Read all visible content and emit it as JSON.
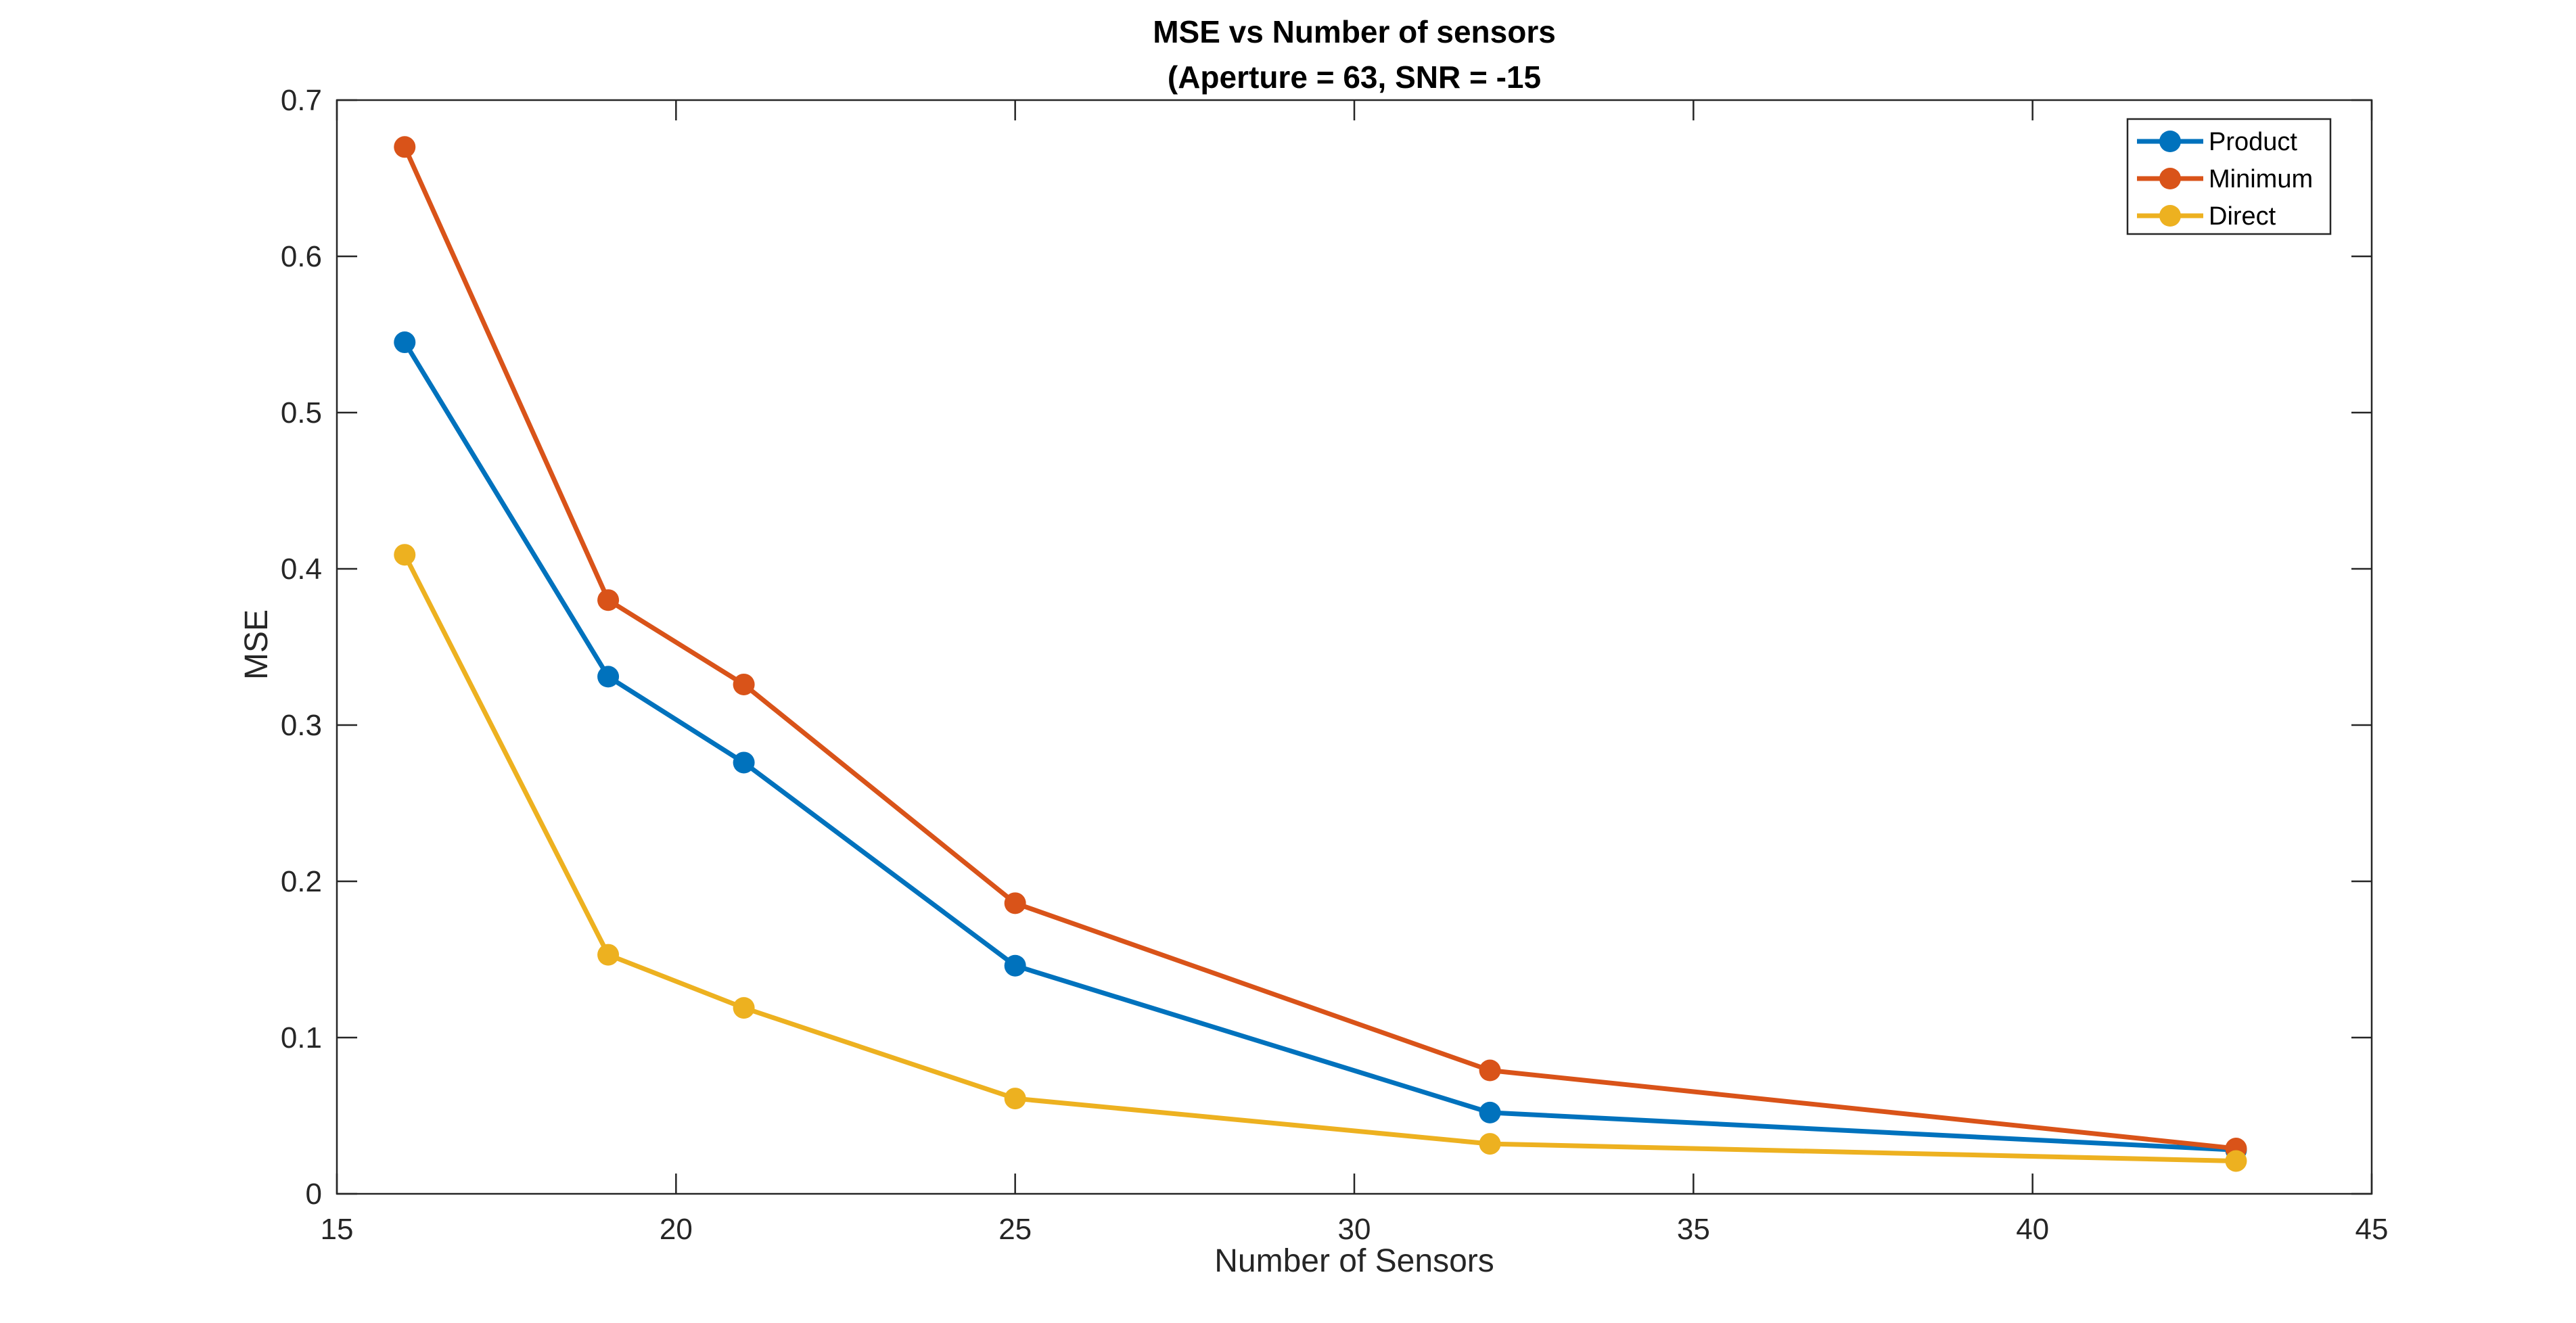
{
  "chart_data": {
    "type": "line",
    "title": "MSE vs Number of sensors",
    "subtitle": "(Aperture = 63, SNR = -15",
    "xlabel": "Number of Sensors",
    "ylabel": "MSE",
    "xlim": [
      15,
      45
    ],
    "ylim": [
      0,
      0.7
    ],
    "xticks": [
      "15",
      "20",
      "25",
      "30",
      "35",
      "40",
      "45"
    ],
    "yticks": [
      "0",
      "0.1",
      "0.2",
      "0.3",
      "0.4",
      "0.5",
      "0.6",
      "0.7"
    ],
    "x": [
      16,
      19,
      21,
      25,
      32,
      43
    ],
    "series": [
      {
        "name": "Product",
        "color": "#0072BD",
        "values": [
          0.545,
          0.331,
          0.276,
          0.146,
          0.052,
          0.028
        ]
      },
      {
        "name": "Minimum",
        "color": "#D95319",
        "values": [
          0.67,
          0.38,
          0.326,
          0.186,
          0.079,
          0.029
        ]
      },
      {
        "name": "Direct",
        "color": "#EDB120",
        "values": [
          0.409,
          0.153,
          0.119,
          0.061,
          0.032,
          0.021
        ]
      }
    ],
    "grid": false,
    "legend_position": "top-right",
    "marker": "filled-circle"
  }
}
